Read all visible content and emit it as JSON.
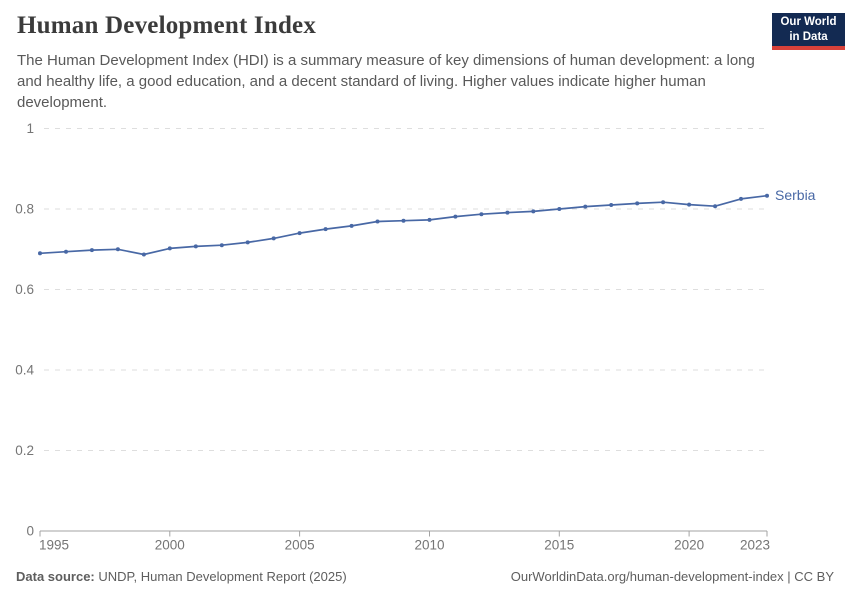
{
  "header": {
    "title": "Human Development Index",
    "subtitle": "The Human Development Index (HDI) is a summary measure of key dimensions of human development: a long and healthy life, a good education, and a decent standard of living. Higher values indicate higher human development.",
    "logo": {
      "line1": "Our World",
      "line2": "in Data",
      "bg_color": "#132a52",
      "accent_color": "#d8413a"
    }
  },
  "chart_data": {
    "type": "line",
    "title": "Human Development Index",
    "entity": "Serbia",
    "label": "Serbia",
    "x": [
      1995,
      1996,
      1997,
      1998,
      1999,
      2000,
      2001,
      2002,
      2003,
      2004,
      2005,
      2006,
      2007,
      2008,
      2009,
      2010,
      2011,
      2012,
      2013,
      2014,
      2015,
      2016,
      2017,
      2018,
      2019,
      2020,
      2021,
      2022,
      2023
    ],
    "values": [
      0.69,
      0.694,
      0.698,
      0.7,
      0.687,
      0.702,
      0.707,
      0.71,
      0.717,
      0.727,
      0.74,
      0.75,
      0.758,
      0.769,
      0.771,
      0.773,
      0.781,
      0.787,
      0.791,
      0.794,
      0.8,
      0.806,
      0.81,
      0.814,
      0.817,
      0.811,
      0.807,
      0.825,
      0.833
    ],
    "xlabel": "",
    "ylabel": "",
    "xlim": [
      1995,
      2023
    ],
    "ylim": [
      0,
      1
    ],
    "xticks": [
      1995,
      2000,
      2005,
      2010,
      2015,
      2020,
      2023
    ],
    "yticks": [
      0,
      0.2,
      0.4,
      0.6,
      0.8,
      1
    ],
    "ytick_labels": [
      "0",
      "0.2",
      "0.4",
      "0.6",
      "0.8",
      "1"
    ],
    "grid": "horizontal-dashed",
    "legend_position": "end-of-line",
    "colors": {
      "line": "#4868a5",
      "grid": "#dedede",
      "axis": "#a3a3a3",
      "tick_label": "#757575"
    }
  },
  "footer": {
    "source_label": "Data source:",
    "source_text": " UNDP, Human Development Report (2025)",
    "attribution": "OurWorldinData.org/human-development-index | CC BY"
  }
}
